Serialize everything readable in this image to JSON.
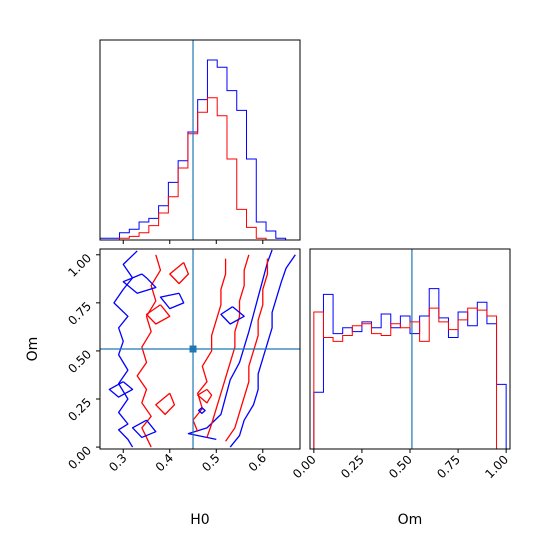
{
  "colors": {
    "blue": "#0000ff",
    "red": "#ff0000",
    "truth": "#1f77b4",
    "axes": "#000000"
  },
  "chart_data": [
    {
      "panel": "H0-marginal",
      "type": "step-histogram",
      "xlim": [
        0.25,
        0.68
      ],
      "truth": 0.45,
      "bin_edges": [
        0.25,
        0.271,
        0.292,
        0.313,
        0.334,
        0.355,
        0.376,
        0.397,
        0.418,
        0.439,
        0.46,
        0.481,
        0.502,
        0.523,
        0.544,
        0.565,
        0.586,
        0.607,
        0.628,
        0.649,
        0.67
      ],
      "series": [
        {
          "color": "blue",
          "values": [
            0.01,
            0.01,
            0.04,
            0.06,
            0.1,
            0.12,
            0.19,
            0.32,
            0.44,
            0.6,
            0.78,
            1.0,
            0.96,
            0.83,
            0.72,
            0.45,
            0.1,
            0.05,
            0.01,
            0.0
          ]
        },
        {
          "color": "red",
          "values": [
            0.0,
            0.0,
            0.01,
            0.02,
            0.04,
            0.08,
            0.15,
            0.24,
            0.4,
            0.59,
            0.71,
            0.79,
            0.69,
            0.45,
            0.17,
            0.07,
            0.01,
            0.0,
            0.0,
            0.0
          ]
        }
      ]
    },
    {
      "panel": "Om-marginal",
      "type": "step-histogram",
      "xlabel": "Om",
      "xlim": [
        -0.02,
        1.02
      ],
      "truth": 0.51,
      "x_ticks": [
        "0.00",
        "0.25",
        "0.50",
        "0.75",
        "1.00"
      ],
      "bin_edges": [
        0.0,
        0.05,
        0.1,
        0.15,
        0.2,
        0.25,
        0.3,
        0.35,
        0.4,
        0.45,
        0.5,
        0.55,
        0.6,
        0.65,
        0.7,
        0.75,
        0.8,
        0.85,
        0.9,
        0.95,
        1.0
      ],
      "series": [
        {
          "color": "blue",
          "values": [
            0.29,
            0.79,
            0.59,
            0.62,
            0.6,
            0.65,
            0.62,
            0.69,
            0.62,
            0.68,
            0.59,
            0.68,
            0.82,
            0.67,
            0.57,
            0.7,
            0.63,
            0.75,
            0.64,
            0.33
          ]
        },
        {
          "color": "red",
          "values": [
            0.7,
            0.57,
            0.55,
            0.58,
            0.63,
            0.64,
            0.59,
            0.58,
            0.64,
            0.62,
            0.65,
            0.55,
            0.72,
            0.65,
            0.61,
            0.66,
            0.72,
            0.71,
            0.68,
            0.0
          ]
        }
      ]
    },
    {
      "panel": "H0-Om-joint",
      "type": "contour",
      "xlabel": "H0",
      "ylabel": "Om",
      "xlim": [
        0.25,
        0.68
      ],
      "ylim": [
        -0.01,
        1.03
      ],
      "x_ticks": [
        "0.3",
        "0.4",
        "0.5",
        "0.6"
      ],
      "y_ticks": [
        "0.00",
        "0.25",
        "0.50",
        "0.75",
        "1.00"
      ],
      "truth": [
        0.45,
        0.51
      ],
      "contours": [
        {
          "color": "blue",
          "points": [
            [
              0.32,
              0.0
            ],
            [
              0.31,
              0.04
            ],
            [
              0.29,
              0.09
            ],
            [
              0.31,
              0.12
            ],
            [
              0.29,
              0.18
            ],
            [
              0.31,
              0.25
            ],
            [
              0.29,
              0.33
            ],
            [
              0.31,
              0.4
            ],
            [
              0.29,
              0.48
            ],
            [
              0.3,
              0.55
            ],
            [
              0.29,
              0.62
            ],
            [
              0.31,
              0.68
            ],
            [
              0.28,
              0.75
            ],
            [
              0.3,
              0.82
            ],
            [
              0.32,
              0.88
            ],
            [
              0.3,
              0.95
            ],
            [
              0.33,
              1.02
            ]
          ]
        },
        {
          "color": "blue",
          "points": [
            [
              0.53,
              0.0
            ],
            [
              0.55,
              0.06
            ],
            [
              0.56,
              0.14
            ],
            [
              0.58,
              0.22
            ],
            [
              0.59,
              0.3
            ],
            [
              0.59,
              0.38
            ],
            [
              0.6,
              0.46
            ],
            [
              0.61,
              0.54
            ],
            [
              0.62,
              0.62
            ],
            [
              0.62,
              0.7
            ],
            [
              0.63,
              0.78
            ],
            [
              0.64,
              0.86
            ],
            [
              0.65,
              0.93
            ],
            [
              0.67,
              1.0
            ]
          ]
        },
        {
          "color": "blue",
          "points": [
            [
              0.5,
              0.04
            ],
            [
              0.44,
              0.07
            ],
            [
              0.48,
              0.1
            ],
            [
              0.51,
              0.17
            ],
            [
              0.52,
              0.26
            ],
            [
              0.53,
              0.35
            ],
            [
              0.55,
              0.44
            ],
            [
              0.56,
              0.52
            ],
            [
              0.57,
              0.6
            ],
            [
              0.58,
              0.69
            ],
            [
              0.59,
              0.78
            ],
            [
              0.6,
              0.87
            ],
            [
              0.61,
              0.96
            ],
            [
              0.62,
              1.03
            ]
          ]
        },
        {
          "color": "red",
          "points": [
            [
              0.36,
              0.0
            ],
            [
              0.35,
              0.05
            ],
            [
              0.34,
              0.1
            ],
            [
              0.36,
              0.16
            ],
            [
              0.34,
              0.23
            ],
            [
              0.35,
              0.3
            ],
            [
              0.33,
              0.37
            ],
            [
              0.35,
              0.44
            ],
            [
              0.34,
              0.52
            ],
            [
              0.36,
              0.6
            ],
            [
              0.35,
              0.68
            ],
            [
              0.37,
              0.76
            ],
            [
              0.36,
              0.84
            ],
            [
              0.38,
              0.92
            ],
            [
              0.37,
              1.0
            ]
          ]
        },
        {
          "color": "red",
          "points": [
            [
              0.48,
              0.05
            ],
            [
              0.49,
              0.12
            ],
            [
              0.5,
              0.2
            ],
            [
              0.51,
              0.28
            ],
            [
              0.52,
              0.36
            ],
            [
              0.53,
              0.44
            ],
            [
              0.54,
              0.52
            ],
            [
              0.54,
              0.6
            ],
            [
              0.55,
              0.68
            ],
            [
              0.55,
              0.76
            ],
            [
              0.56,
              0.84
            ],
            [
              0.56,
              0.92
            ],
            [
              0.57,
              1.0
            ]
          ]
        },
        {
          "color": "red",
          "points": [
            [
              0.52,
              0.03
            ],
            [
              0.54,
              0.1
            ],
            [
              0.55,
              0.18
            ],
            [
              0.56,
              0.26
            ],
            [
              0.57,
              0.34
            ],
            [
              0.57,
              0.42
            ],
            [
              0.58,
              0.5
            ],
            [
              0.59,
              0.58
            ],
            [
              0.59,
              0.66
            ],
            [
              0.6,
              0.74
            ],
            [
              0.6,
              0.82
            ],
            [
              0.61,
              0.9
            ],
            [
              0.61,
              0.98
            ]
          ]
        },
        {
          "color": "red",
          "points": [
            [
              0.46,
              0.08
            ],
            [
              0.45,
              0.14
            ],
            [
              0.47,
              0.2
            ],
            [
              0.46,
              0.28
            ],
            [
              0.48,
              0.34
            ],
            [
              0.47,
              0.42
            ],
            [
              0.49,
              0.5
            ],
            [
              0.49,
              0.58
            ],
            [
              0.5,
              0.66
            ],
            [
              0.51,
              0.74
            ],
            [
              0.51,
              0.82
            ],
            [
              0.52,
              0.9
            ],
            [
              0.52,
              0.98
            ]
          ]
        },
        {
          "color": "blue",
          "points": [
            [
              0.34,
              0.9
            ],
            [
              0.3,
              0.86
            ],
            [
              0.33,
              0.8
            ],
            [
              0.37,
              0.83
            ],
            [
              0.35,
              0.88
            ],
            [
              0.34,
              0.9
            ]
          ]
        },
        {
          "color": "blue",
          "points": [
            [
              0.3,
              0.34
            ],
            [
              0.27,
              0.3
            ],
            [
              0.29,
              0.26
            ],
            [
              0.32,
              0.3
            ],
            [
              0.3,
              0.34
            ]
          ]
        },
        {
          "color": "blue",
          "points": [
            [
              0.42,
              0.8
            ],
            [
              0.38,
              0.78
            ],
            [
              0.4,
              0.72
            ],
            [
              0.43,
              0.75
            ],
            [
              0.42,
              0.8
            ]
          ]
        },
        {
          "color": "red",
          "points": [
            [
              0.38,
              0.74
            ],
            [
              0.35,
              0.69
            ],
            [
              0.37,
              0.64
            ],
            [
              0.4,
              0.68
            ],
            [
              0.38,
              0.74
            ]
          ]
        },
        {
          "color": "red",
          "points": [
            [
              0.43,
              0.96
            ],
            [
              0.4,
              0.9
            ],
            [
              0.42,
              0.85
            ],
            [
              0.44,
              0.9
            ],
            [
              0.43,
              0.96
            ]
          ]
        },
        {
          "color": "blue",
          "points": [
            [
              0.535,
              0.73
            ],
            [
              0.51,
              0.69
            ],
            [
              0.53,
              0.64
            ],
            [
              0.56,
              0.68
            ],
            [
              0.535,
              0.73
            ]
          ]
        },
        {
          "color": "red",
          "points": [
            [
              0.4,
              0.28
            ],
            [
              0.37,
              0.22
            ],
            [
              0.39,
              0.17
            ],
            [
              0.41,
              0.22
            ],
            [
              0.4,
              0.28
            ]
          ]
        },
        {
          "color": "blue",
          "points": [
            [
              0.35,
              0.14
            ],
            [
              0.32,
              0.1
            ],
            [
              0.34,
              0.05
            ],
            [
              0.37,
              0.08
            ],
            [
              0.35,
              0.14
            ]
          ]
        },
        {
          "color": "red",
          "points": [
            [
              0.48,
              0.3
            ],
            [
              0.46,
              0.27
            ],
            [
              0.48,
              0.23
            ],
            [
              0.49,
              0.27
            ],
            [
              0.48,
              0.3
            ]
          ]
        },
        {
          "color": "blue",
          "points": [
            [
              0.469,
              0.205
            ],
            [
              0.462,
              0.19
            ],
            [
              0.469,
              0.175
            ],
            [
              0.476,
              0.19
            ],
            [
              0.469,
              0.205
            ]
          ]
        }
      ]
    }
  ]
}
